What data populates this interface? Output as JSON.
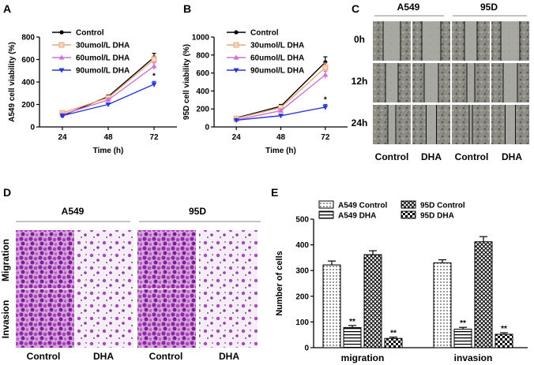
{
  "panel_letters": {
    "a": "A",
    "b": "B",
    "c": "C",
    "d": "D",
    "e": "E"
  },
  "series_colors": {
    "Control": "#000000",
    "30umol/L DHA": "#e8a878",
    "60umol/L DHA": "#d070d8",
    "90umol/L DHA": "#2838d8"
  },
  "chart_data": [
    {
      "id": "A",
      "type": "line",
      "title": "",
      "xlabel": "Time (h)",
      "ylabel": "A549 cell viability (%)",
      "x": [
        24,
        48,
        72
      ],
      "ylim": [
        0,
        800
      ],
      "yticks": [
        0,
        200,
        400,
        600,
        800
      ],
      "series": [
        {
          "name": "Control",
          "values": [
            100,
            270,
            620
          ],
          "errors": [
            8,
            15,
            35
          ]
        },
        {
          "name": "30umol/L DHA",
          "values": [
            125,
            260,
            600
          ],
          "errors": [
            8,
            15,
            30
          ]
        },
        {
          "name": "60umol/L DHA",
          "values": [
            110,
            240,
            540
          ],
          "errors": [
            8,
            15,
            30
          ]
        },
        {
          "name": "90umol/L DHA",
          "values": [
            100,
            200,
            380
          ],
          "errors": [
            6,
            12,
            25
          ]
        }
      ],
      "annotations": [
        {
          "x": 72,
          "y": 430,
          "text": "*"
        }
      ]
    },
    {
      "id": "B",
      "type": "line",
      "title": "",
      "xlabel": "Time (h)",
      "ylabel": "95D cell viability (%)",
      "x": [
        24,
        48,
        72
      ],
      "ylim": [
        0,
        1000
      ],
      "yticks": [
        0,
        200,
        400,
        600,
        800,
        1000
      ],
      "series": [
        {
          "name": "Control",
          "values": [
            100,
            230,
            720
          ],
          "errors": [
            8,
            20,
            60
          ]
        },
        {
          "name": "30umol/L DHA",
          "values": [
            95,
            215,
            660
          ],
          "errors": [
            8,
            20,
            50
          ]
        },
        {
          "name": "60umol/L DHA",
          "values": [
            80,
            180,
            580
          ],
          "errors": [
            8,
            20,
            40
          ]
        },
        {
          "name": "90umol/L DHA",
          "values": [
            75,
            125,
            220
          ],
          "errors": [
            6,
            15,
            30
          ]
        }
      ],
      "annotations": [
        {
          "x": 72,
          "y": 275,
          "text": "*"
        }
      ]
    },
    {
      "id": "E",
      "type": "bar",
      "title": "",
      "xlabel": "",
      "ylabel": "Number of cells",
      "categories": [
        "migration",
        "invasion"
      ],
      "ylim": [
        0,
        500
      ],
      "yticks": [
        0,
        100,
        200,
        300,
        400,
        500
      ],
      "series": [
        {
          "name": "A549 Control",
          "values": [
            322,
            330
          ],
          "errors": [
            15,
            12
          ],
          "sig": [
            "",
            ""
          ]
        },
        {
          "name": "A549 DHA",
          "values": [
            78,
            72
          ],
          "errors": [
            8,
            7
          ],
          "sig": [
            "**",
            "**"
          ]
        },
        {
          "name": "95D Control",
          "values": [
            362,
            412
          ],
          "errors": [
            15,
            20
          ],
          "sig": [
            "",
            ""
          ]
        },
        {
          "name": "95D DHA",
          "values": [
            36,
            52
          ],
          "errors": [
            5,
            6
          ],
          "sig": [
            "**",
            "**"
          ]
        }
      ]
    }
  ],
  "wound_assay": {
    "groups": [
      "A549",
      "95D"
    ],
    "rows": [
      "0h",
      "12h",
      "24h"
    ],
    "columns": [
      "Control",
      "DHA",
      "Control",
      "DHA"
    ]
  },
  "transwell": {
    "groups": [
      "A549",
      "95D"
    ],
    "rows": [
      "Migration",
      "Invasion"
    ],
    "columns": [
      "Control",
      "DHA",
      "Control",
      "DHA"
    ]
  }
}
